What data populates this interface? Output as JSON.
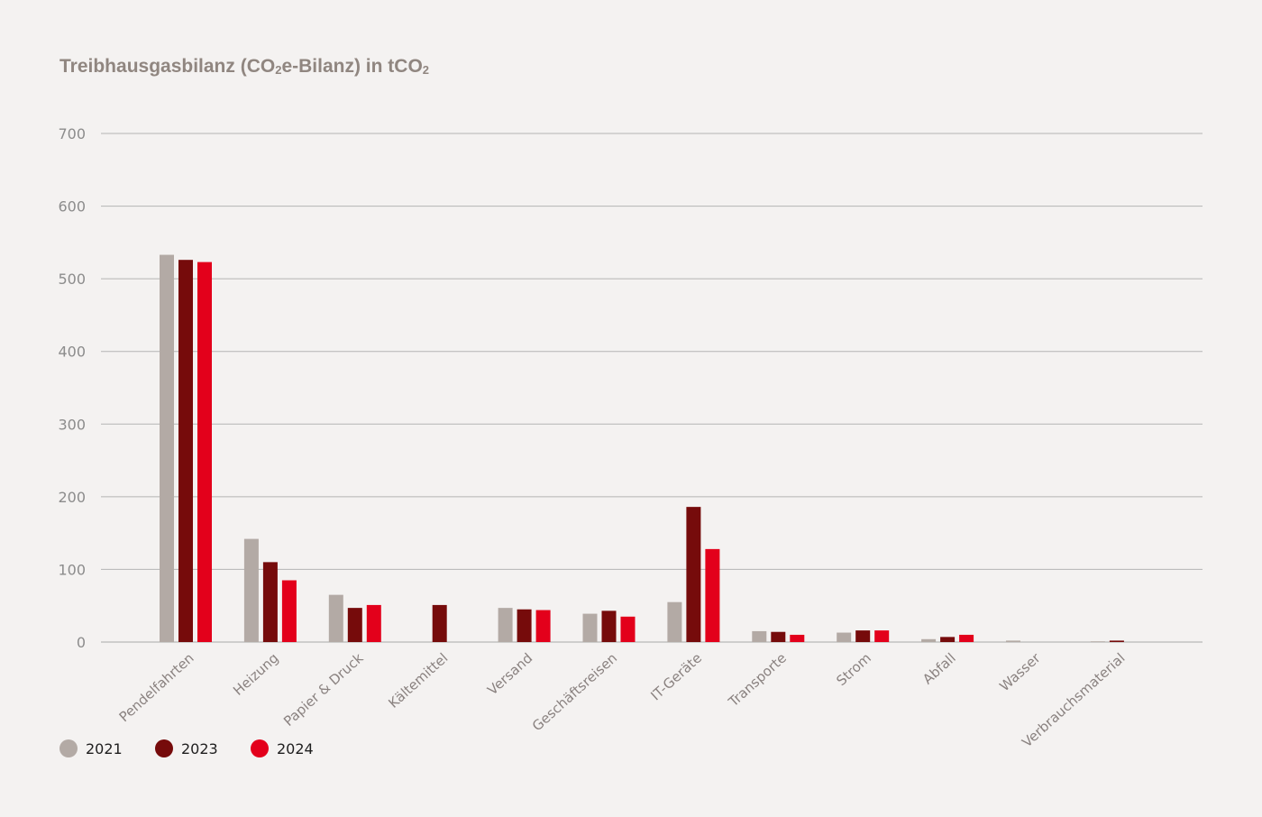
{
  "chart_data": {
    "type": "bar",
    "title": {
      "main": "Treibhausgasbilanz (CO",
      "sub1": "2",
      "mid": "e-Bilanz) in tCO",
      "sub2": "2"
    },
    "xlabel": "",
    "ylabel": "",
    "ylim": [
      0,
      700
    ],
    "yticks": [
      0,
      100,
      200,
      300,
      400,
      500,
      600,
      700
    ],
    "grid": true,
    "legend_position": "bottom-left",
    "categories": [
      "Pendelfahrten",
      "Heizung",
      "Papier & Druck",
      "Kältemittel",
      "Versand",
      "Geschäftsreisen",
      "IT-Geräte",
      "Transporte",
      "Strom",
      "Abfall",
      "Wasser",
      "Verbrauchsmaterial"
    ],
    "series": [
      {
        "name": "2021",
        "color": "#b3aaa5",
        "values": [
          533,
          142,
          65,
          0,
          47,
          39,
          55,
          15,
          13,
          4,
          2,
          1
        ]
      },
      {
        "name": "2023",
        "color": "#760b0b",
        "values": [
          526,
          110,
          47,
          51,
          45,
          43,
          186,
          14,
          16,
          7,
          0,
          2
        ]
      },
      {
        "name": "2024",
        "color": "#e3001b",
        "values": [
          523,
          85,
          51,
          0,
          44,
          35,
          128,
          10,
          16,
          10,
          0,
          0
        ]
      }
    ]
  }
}
